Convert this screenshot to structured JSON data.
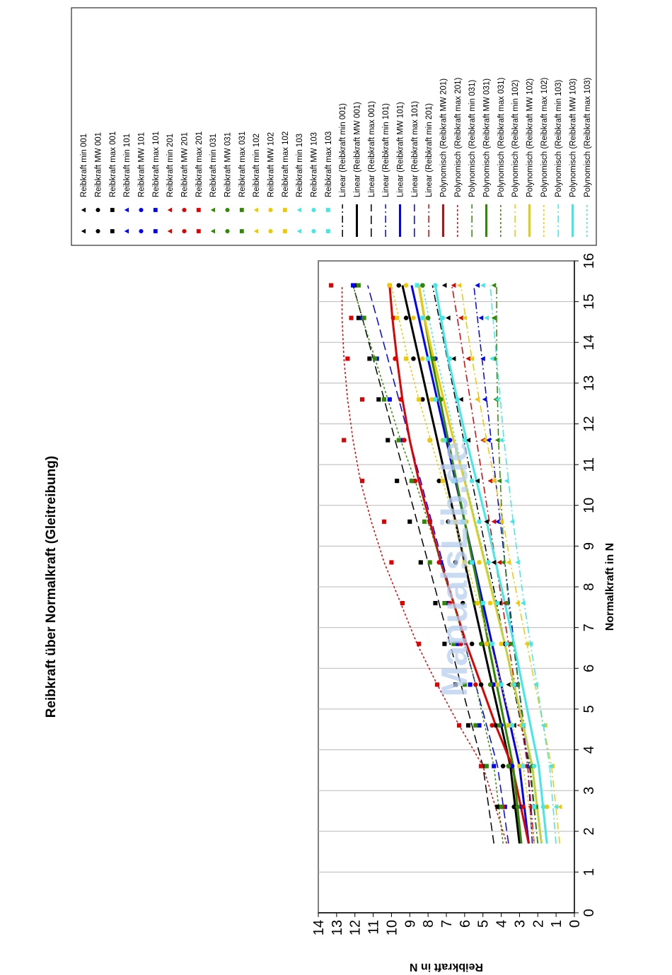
{
  "chart_data": {
    "type": "scatter",
    "title": "Reibkraft über Normalkraft (Gleitreibung)",
    "xlabel": "Normalkraft in N",
    "ylabel": "Reibkraft in N",
    "xlim": [
      0,
      16
    ],
    "ylim": [
      0,
      14
    ],
    "x_ticks": [
      "0",
      "1",
      "2",
      "3",
      "4",
      "5",
      "6",
      "7",
      "8",
      "9",
      "10",
      "11",
      "12",
      "13",
      "14",
      "15",
      "16"
    ],
    "y_ticks": [
      "0",
      "1",
      "2",
      "3",
      "4",
      "5",
      "6",
      "7",
      "8",
      "9",
      "10",
      "11",
      "12",
      "13",
      "14"
    ],
    "grid": true,
    "legend_position": "right",
    "watermark": "ManualsLib.de",
    "x": [
      2.6,
      3.6,
      4.6,
      5.6,
      6.6,
      7.6,
      8.6,
      9.6,
      10.6,
      11.6,
      12.6,
      13.6,
      14.6,
      15.4
    ],
    "series": [
      {
        "name": "Reibkraft min 001",
        "kind": "scatter",
        "marker": "triangle",
        "color": "#000000",
        "values": [
          2.2,
          2.9,
          3.3,
          3.6,
          3.9,
          4.1,
          4.4,
          4.8,
          5.3,
          5.8,
          6.2,
          6.6,
          6.9,
          7.1
        ]
      },
      {
        "name": "Reibkraft MW 001",
        "kind": "scatter",
        "marker": "circle",
        "color": "#000000",
        "values": [
          3.3,
          3.9,
          4.3,
          5.1,
          5.6,
          6.1,
          6.5,
          6.9,
          7.4,
          7.9,
          8.3,
          8.8,
          9.2,
          9.6
        ]
      },
      {
        "name": "Reibkraft max 001",
        "kind": "scatter",
        "marker": "square",
        "color": "#000000",
        "values": [
          4.2,
          4.9,
          5.8,
          6.5,
          7.1,
          7.6,
          8.4,
          9.0,
          9.7,
          10.2,
          10.7,
          11.2,
          11.8,
          12.0
        ]
      },
      {
        "name": "Reibkraft min 101",
        "kind": "scatter",
        "marker": "triangle",
        "color": "#0000ff",
        "values": [
          2.3,
          2.6,
          2.9,
          3.2,
          3.5,
          3.7,
          3.9,
          4.2,
          4.4,
          4.7,
          4.9,
          5.0,
          5.1,
          5.3
        ]
      },
      {
        "name": "Reibkraft MW 101",
        "kind": "scatter",
        "marker": "circle",
        "color": "#0000ff",
        "values": [
          2.9,
          3.4,
          4.0,
          4.4,
          4.8,
          5.3,
          5.6,
          6.0,
          6.5,
          6.8,
          7.3,
          7.6,
          8.0,
          8.3
        ]
      },
      {
        "name": "Reibkraft max 101",
        "kind": "scatter",
        "marker": "square",
        "color": "#0000ff",
        "values": [
          3.8,
          4.4,
          5.2,
          5.7,
          6.4,
          6.9,
          7.3,
          7.9,
          8.8,
          9.4,
          10.1,
          10.8,
          11.6,
          12.1
        ]
      },
      {
        "name": "Reibkraft min 201",
        "kind": "scatter",
        "marker": "triangle",
        "color": "#e00000",
        "values": [
          2.4,
          2.7,
          3.0,
          3.3,
          3.6,
          3.8,
          4.1,
          4.4,
          4.6,
          5.0,
          5.3,
          5.8,
          6.2,
          6.6
        ]
      },
      {
        "name": "Reibkraft MW 201",
        "kind": "scatter",
        "marker": "circle",
        "color": "#e00000",
        "values": [
          2.8,
          3.6,
          4.5,
          5.4,
          6.2,
          6.8,
          7.4,
          7.9,
          8.7,
          9.3,
          9.5,
          9.8,
          9.9,
          10.1
        ]
      },
      {
        "name": "Reibkraft max 201",
        "kind": "scatter",
        "marker": "square",
        "color": "#e00000",
        "values": [
          3.9,
          5.1,
          6.3,
          7.5,
          8.5,
          9.4,
          10.0,
          10.4,
          11.6,
          12.6,
          11.6,
          12.4,
          12.2,
          13.3
        ]
      },
      {
        "name": "Reibkraft min 031",
        "kind": "scatter",
        "marker": "triangle",
        "color": "#2e8b00",
        "values": [
          2.1,
          2.4,
          2.8,
          3.1,
          3.5,
          3.7,
          3.9,
          4.0,
          4.1,
          4.2,
          4.3,
          4.4,
          4.4,
          4.4
        ]
      },
      {
        "name": "Reibkraft MW 031",
        "kind": "scatter",
        "marker": "circle",
        "color": "#2e8b00",
        "values": [
          3.1,
          3.6,
          4.1,
          4.6,
          5.1,
          5.4,
          5.7,
          6.1,
          6.6,
          7.0,
          7.3,
          7.7,
          8.0,
          8.3
        ]
      },
      {
        "name": "Reibkraft max 031",
        "kind": "scatter",
        "marker": "square",
        "color": "#2e8b00",
        "values": [
          4.0,
          4.8,
          5.4,
          6.0,
          6.6,
          7.1,
          7.9,
          8.2,
          8.9,
          9.6,
          10.4,
          10.9,
          11.5,
          11.8
        ]
      },
      {
        "name": "Reibkraft min 102",
        "kind": "scatter",
        "marker": "triangle",
        "color": "#f0c800",
        "values": [
          0.8,
          1.2,
          1.6,
          2.1,
          2.6,
          3.1,
          3.6,
          4.0,
          4.4,
          4.9,
          5.3,
          5.6,
          6.0,
          6.3
        ]
      },
      {
        "name": "Reibkraft MW 102",
        "kind": "scatter",
        "marker": "circle",
        "color": "#f0c800",
        "values": [
          1.5,
          2.2,
          2.9,
          3.4,
          4.0,
          4.6,
          5.2,
          5.9,
          6.6,
          7.2,
          7.8,
          8.3,
          8.8,
          9.2
        ]
      },
      {
        "name": "Reibkraft max 102",
        "kind": "scatter",
        "marker": "square",
        "color": "#f0c800",
        "values": [
          2.2,
          3.0,
          3.6,
          4.2,
          4.8,
          5.3,
          6.0,
          6.5,
          7.2,
          7.9,
          8.5,
          9.2,
          9.7,
          10.1
        ]
      },
      {
        "name": "Reibkraft min 103",
        "kind": "scatter",
        "marker": "triangle",
        "color": "#40e8e8",
        "values": [
          1.0,
          1.3,
          1.7,
          2.1,
          2.4,
          2.8,
          3.1,
          3.4,
          3.7,
          4.0,
          4.2,
          4.5,
          4.8,
          5.0
        ]
      },
      {
        "name": "Reibkraft MW 103",
        "kind": "scatter",
        "marker": "circle",
        "color": "#40e8e8",
        "values": [
          1.7,
          2.2,
          2.8,
          3.3,
          3.7,
          4.2,
          4.7,
          5.2,
          5.6,
          6.0,
          6.4,
          6.8,
          7.2,
          7.6
        ]
      },
      {
        "name": "Reibkraft max 103",
        "kind": "scatter",
        "marker": "square",
        "color": "#40e8e8",
        "values": [
          2.2,
          2.8,
          3.4,
          4.0,
          4.5,
          5.0,
          5.6,
          6.1,
          6.6,
          7.1,
          7.6,
          8.0,
          8.3,
          8.6
        ]
      },
      {
        "name": "Linear (Reibkraft min 001)",
        "kind": "line",
        "color": "#000000",
        "width": 1.5,
        "dash": "10,4,2,4",
        "values": [
          2.0,
          2.45,
          2.9,
          3.35,
          3.8,
          4.25,
          4.7,
          5.15,
          5.6,
          6.05,
          6.5,
          6.95,
          7.4,
          7.76
        ]
      },
      {
        "name": "Linear (Reibkraft MW 001)",
        "kind": "line",
        "color": "#000000",
        "width": 3,
        "values": [
          3.0,
          3.5,
          4.0,
          4.5,
          5.0,
          5.5,
          6.0,
          6.5,
          7.0,
          7.5,
          8.0,
          8.5,
          9.0,
          9.4
        ]
      },
      {
        "name": "Linear (Reibkraft max 001)",
        "kind": "line",
        "color": "#000000",
        "width": 1.5,
        "dash": "12,6",
        "values": [
          4.4,
          5.0,
          5.6,
          6.2,
          6.8,
          7.4,
          8.0,
          8.6,
          9.2,
          9.8,
          10.4,
          11.0,
          11.6,
          12.1
        ]
      },
      {
        "name": "Linear (Reibkraft min 101)",
        "kind": "line",
        "color": "#0000ff",
        "width": 1.5,
        "dash": "10,4,2,4",
        "values": [
          2.3,
          2.55,
          2.8,
          3.05,
          3.3,
          3.55,
          3.8,
          4.05,
          4.3,
          4.55,
          4.8,
          5.05,
          5.3,
          5.5
        ]
      },
      {
        "name": "Linear (Reibkraft MW 101)",
        "kind": "line",
        "color": "#0000ff",
        "width": 3,
        "values": [
          2.5,
          3.0,
          3.5,
          4.0,
          4.5,
          5.0,
          5.5,
          6.0,
          6.5,
          7.0,
          7.5,
          8.0,
          8.5,
          8.9
        ]
      },
      {
        "name": "Linear (Reibkraft max 101)",
        "kind": "line",
        "color": "#0000ff",
        "width": 1.5,
        "dash": "12,6",
        "values": [
          3.6,
          4.2,
          4.8,
          5.4,
          6.0,
          6.6,
          7.2,
          7.8,
          8.4,
          9.0,
          9.6,
          10.2,
          10.8,
          11.3
        ]
      },
      {
        "name": "Linear (Reibkraft min 201)",
        "kind": "line",
        "color": "#e00000",
        "width": 1.5,
        "dash": "10,4,2,4",
        "values": [
          2.2,
          2.55,
          2.9,
          3.25,
          3.6,
          3.95,
          4.3,
          4.65,
          5.0,
          5.35,
          5.7,
          6.05,
          6.4,
          6.7
        ]
      },
      {
        "name": "Polynomisch (Reibkraft MW 201)",
        "kind": "line",
        "color": "#e00000",
        "width": 3,
        "values": [
          2.5,
          3.4,
          4.3,
          5.1,
          5.9,
          6.6,
          7.3,
          7.9,
          8.5,
          9.0,
          9.4,
          9.7,
          9.95,
          10.1
        ]
      },
      {
        "name": "Polynomisch (Reibkraft max 201)",
        "kind": "line",
        "color": "#e00000",
        "width": 1.5,
        "dash": "3,3",
        "values": [
          3.7,
          5.0,
          6.3,
          7.5,
          8.6,
          9.5,
          10.4,
          11.1,
          11.7,
          12.1,
          12.4,
          12.6,
          12.7,
          12.7
        ]
      },
      {
        "name": "Polynomisch (Reibkraft min 031)",
        "kind": "line",
        "color": "#2e8b00",
        "width": 1.5,
        "dash": "10,4,2,4",
        "values": [
          2.0,
          2.4,
          2.75,
          3.05,
          3.35,
          3.6,
          3.8,
          3.95,
          4.05,
          4.15,
          4.2,
          4.25,
          4.25,
          4.25
        ]
      },
      {
        "name": "Polynomisch (Reibkraft MW 031)",
        "kind": "line",
        "color": "#2e8b00",
        "width": 3,
        "values": [
          2.9,
          3.35,
          3.8,
          4.25,
          4.7,
          5.1,
          5.55,
          6.0,
          6.45,
          6.9,
          7.35,
          7.8,
          8.2,
          8.5
        ]
      },
      {
        "name": "Polynomisch (Reibkraft max 031)",
        "kind": "line",
        "color": "#2e8b00",
        "width": 1.5,
        "dash": "3,3",
        "values": [
          3.9,
          4.4,
          4.9,
          5.4,
          6.0,
          6.6,
          7.3,
          8.0,
          8.7,
          9.5,
          10.2,
          10.9,
          11.6,
          12.1
        ]
      },
      {
        "name": "Polynomisch (Reibkraft min 102)",
        "kind": "line",
        "color": "#f0c800",
        "width": 1.5,
        "dash": "10,4,2,4",
        "values": [
          0.8,
          1.25,
          1.7,
          2.15,
          2.6,
          3.05,
          3.5,
          3.9,
          4.35,
          4.8,
          5.2,
          5.6,
          5.95,
          6.2
        ]
      },
      {
        "name": "Polynomisch (Reibkraft MW 102)",
        "kind": "line",
        "color": "#f0c800",
        "width": 3,
        "values": [
          1.8,
          2.3,
          2.8,
          3.3,
          3.8,
          4.35,
          4.9,
          5.45,
          6.0,
          6.6,
          7.15,
          7.7,
          8.2,
          8.5
        ]
      },
      {
        "name": "Polynomisch (Reibkraft max 102)",
        "kind": "line",
        "color": "#f0c800",
        "width": 1.5,
        "dash": "3,3",
        "values": [
          2.2,
          2.8,
          3.4,
          4.0,
          4.6,
          5.25,
          5.9,
          6.55,
          7.2,
          7.85,
          8.5,
          9.1,
          9.6,
          10.0
        ]
      },
      {
        "name": "Polynomisch (Reibkraft min 103)",
        "kind": "line",
        "color": "#40e8e8",
        "width": 1.5,
        "dash": "10,4,2,4",
        "values": [
          1.0,
          1.35,
          1.7,
          2.05,
          2.4,
          2.75,
          3.05,
          3.35,
          3.6,
          3.85,
          4.05,
          4.25,
          4.45,
          4.6
        ]
      },
      {
        "name": "Polynomisch (Reibkraft MW 103)",
        "kind": "line",
        "color": "#40e8e8",
        "width": 3,
        "values": [
          1.5,
          1.95,
          2.4,
          2.85,
          3.3,
          3.8,
          4.3,
          4.8,
          5.35,
          5.9,
          6.4,
          6.9,
          7.3,
          7.6
        ]
      },
      {
        "name": "Polynomisch (Reibkraft max 103)",
        "kind": "line",
        "color": "#40e8e8",
        "width": 1.5,
        "dash": "3,3",
        "values": [
          1.8,
          2.3,
          2.8,
          3.3,
          3.8,
          4.3,
          4.85,
          5.4,
          5.95,
          6.5,
          7.0,
          7.5,
          7.95,
          8.3
        ]
      }
    ]
  }
}
